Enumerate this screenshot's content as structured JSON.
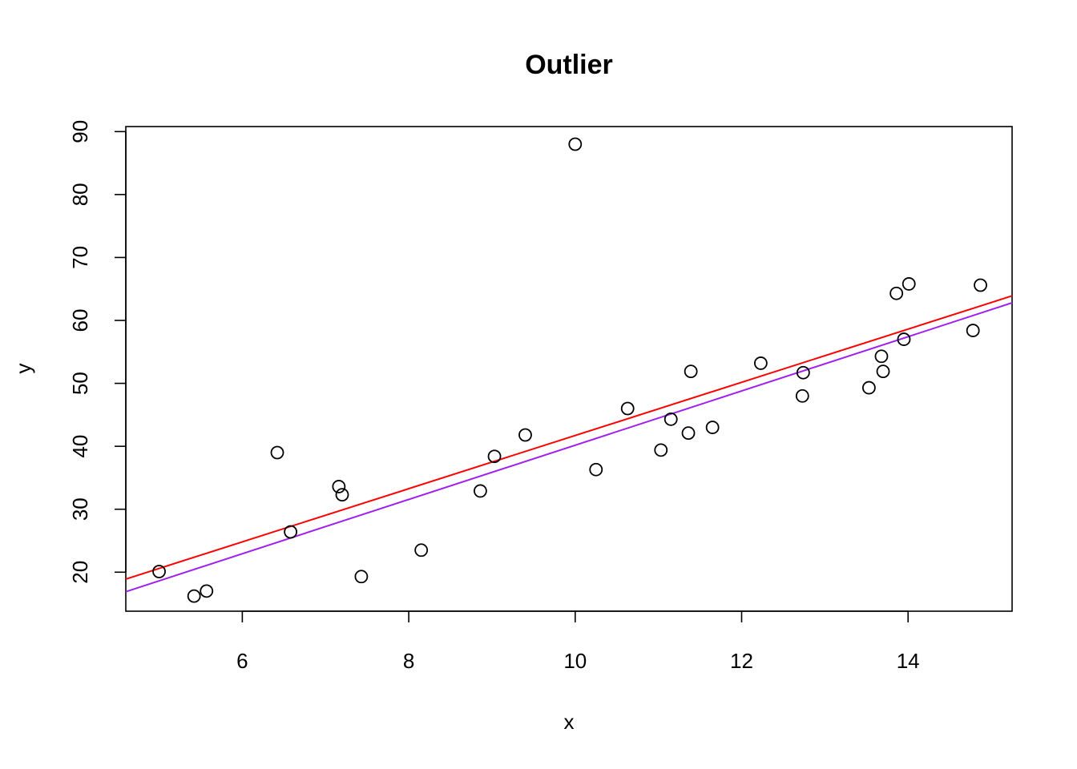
{
  "chart_data": {
    "type": "scatter",
    "title": "Outlier",
    "xlabel": "x",
    "ylabel": "y",
    "xlim": [
      4.6,
      15.25
    ],
    "ylim": [
      13.8,
      90.8
    ],
    "xticks": [
      6,
      8,
      10,
      12,
      14
    ],
    "yticks": [
      20,
      30,
      40,
      50,
      60,
      70,
      80,
      90
    ],
    "grid": false,
    "legend": "none",
    "points": [
      {
        "x": 5.0,
        "y": 20.1
      },
      {
        "x": 5.42,
        "y": 16.2
      },
      {
        "x": 5.57,
        "y": 17.0
      },
      {
        "x": 6.42,
        "y": 39.0
      },
      {
        "x": 6.58,
        "y": 26.4
      },
      {
        "x": 7.16,
        "y": 33.6
      },
      {
        "x": 7.2,
        "y": 32.3
      },
      {
        "x": 7.43,
        "y": 19.3
      },
      {
        "x": 8.15,
        "y": 23.5
      },
      {
        "x": 8.86,
        "y": 32.9
      },
      {
        "x": 9.03,
        "y": 38.4
      },
      {
        "x": 9.4,
        "y": 41.8
      },
      {
        "x": 10.0,
        "y": 88.0
      },
      {
        "x": 10.25,
        "y": 36.3
      },
      {
        "x": 10.63,
        "y": 46.0
      },
      {
        "x": 11.03,
        "y": 39.4
      },
      {
        "x": 11.15,
        "y": 44.3
      },
      {
        "x": 11.36,
        "y": 42.1
      },
      {
        "x": 11.39,
        "y": 51.9
      },
      {
        "x": 11.65,
        "y": 43.0
      },
      {
        "x": 12.23,
        "y": 53.2
      },
      {
        "x": 12.73,
        "y": 48.0
      },
      {
        "x": 12.74,
        "y": 51.7
      },
      {
        "x": 13.53,
        "y": 49.3
      },
      {
        "x": 13.68,
        "y": 54.3
      },
      {
        "x": 13.7,
        "y": 51.9
      },
      {
        "x": 13.86,
        "y": 64.3
      },
      {
        "x": 13.95,
        "y": 57.0
      },
      {
        "x": 14.01,
        "y": 65.8
      },
      {
        "x": 14.78,
        "y": 58.4
      },
      {
        "x": 14.87,
        "y": 65.6
      }
    ],
    "lines": [
      {
        "color": "#ff0000",
        "x": [
          4.6,
          15.25
        ],
        "y": [
          18.9,
          63.9
        ]
      },
      {
        "color": "#a020f0",
        "x": [
          4.6,
          15.25
        ],
        "y": [
          16.9,
          62.8
        ]
      }
    ],
    "colors": {
      "points": "#000000",
      "axis": "#000000"
    }
  }
}
